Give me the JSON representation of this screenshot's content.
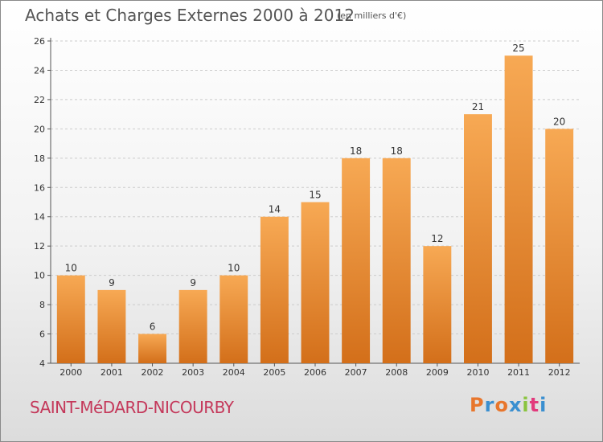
{
  "title": "Achats et Charges Externes 2000 à 2012",
  "subtitle": "(en milliers d'€)",
  "commune": "SAINT-MéDARD-NICOURBY",
  "logo": {
    "letters": [
      "P",
      "r",
      "o",
      "x",
      "i",
      "t",
      "i"
    ],
    "colors": [
      "#e8762c",
      "#3a8fd0",
      "#e8762c",
      "#3a8fd0",
      "#8ac43f",
      "#e23a7c",
      "#3a8fd0"
    ]
  },
  "colors": {
    "bar_light": "#f7a954",
    "bar_dark": "#d36f1a",
    "grid": "#cccccc",
    "axis": "#555555",
    "commune": "#c4385a"
  },
  "chart_data": {
    "type": "bar",
    "title": "Achats et Charges Externes 2000 à 2012",
    "subtitle": "(en milliers d'€)",
    "xlabel": "",
    "ylabel": "",
    "categories": [
      "2000",
      "2001",
      "2002",
      "2003",
      "2004",
      "2005",
      "2006",
      "2007",
      "2008",
      "2009",
      "2010",
      "2011",
      "2012"
    ],
    "values": [
      10,
      9,
      6,
      9,
      10,
      14,
      15,
      18,
      18,
      12,
      21,
      25,
      20
    ],
    "ylim": [
      4,
      26
    ],
    "yticks": [
      4,
      6,
      8,
      10,
      12,
      14,
      16,
      18,
      20,
      22,
      24,
      26
    ],
    "grid": true,
    "grid_style": "dashed horizontal",
    "data_labels": true
  }
}
